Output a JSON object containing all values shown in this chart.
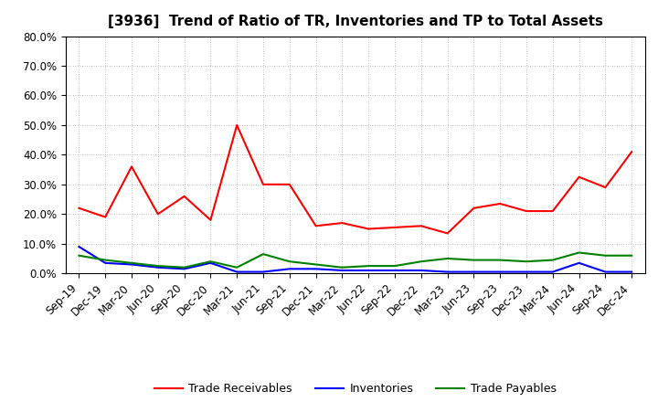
{
  "title": "[3936]  Trend of Ratio of TR, Inventories and TP to Total Assets",
  "labels": [
    "Sep-19",
    "Dec-19",
    "Mar-20",
    "Jun-20",
    "Sep-20",
    "Dec-20",
    "Mar-21",
    "Jun-21",
    "Sep-21",
    "Dec-21",
    "Mar-22",
    "Jun-22",
    "Sep-22",
    "Dec-22",
    "Mar-23",
    "Jun-23",
    "Sep-23",
    "Dec-23",
    "Mar-24",
    "Jun-24",
    "Sep-24",
    "Dec-24"
  ],
  "trade_receivables": [
    22.0,
    19.0,
    36.0,
    20.0,
    26.0,
    18.0,
    50.0,
    30.0,
    30.0,
    16.0,
    17.0,
    15.0,
    15.5,
    16.0,
    13.5,
    22.0,
    23.5,
    21.0,
    21.0,
    32.5,
    29.0,
    41.0
  ],
  "inventories": [
    9.0,
    3.5,
    3.0,
    2.0,
    1.5,
    3.5,
    0.5,
    0.5,
    1.5,
    1.5,
    1.0,
    1.0,
    1.0,
    1.0,
    0.5,
    0.5,
    0.5,
    0.5,
    0.5,
    3.5,
    0.5,
    0.5
  ],
  "trade_payables": [
    6.0,
    4.5,
    3.5,
    2.5,
    2.0,
    4.0,
    2.0,
    6.5,
    4.0,
    3.0,
    2.0,
    2.5,
    2.5,
    4.0,
    5.0,
    4.5,
    4.5,
    4.0,
    4.5,
    7.0,
    6.0,
    6.0
  ],
  "ylim": [
    0.0,
    80.0
  ],
  "yticks": [
    0.0,
    10.0,
    20.0,
    30.0,
    40.0,
    50.0,
    60.0,
    70.0,
    80.0
  ],
  "color_tr": "#FF0000",
  "color_inv": "#0000FF",
  "color_tp": "#008000",
  "background_color": "#FFFFFF",
  "grid_color": "#AAAAAA",
  "legend_tr": "Trade Receivables",
  "legend_inv": "Inventories",
  "legend_tp": "Trade Payables",
  "linewidth": 1.5,
  "title_fontsize": 11,
  "tick_fontsize": 8.5,
  "legend_fontsize": 9
}
